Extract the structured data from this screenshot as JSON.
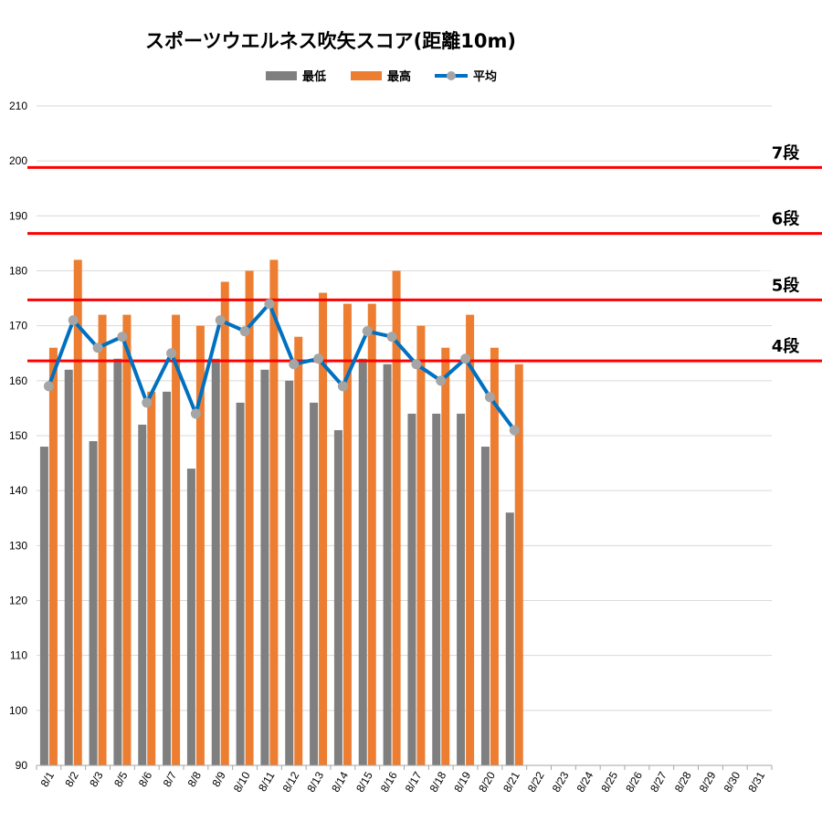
{
  "chart_data": {
    "type": "bar",
    "title": "スポーツウエルネス吹矢スコア(距離10m)",
    "xlabel": "",
    "ylabel": "",
    "ylim": [
      90,
      210
    ],
    "yticks": [
      90,
      100,
      110,
      120,
      130,
      140,
      150,
      160,
      170,
      180,
      190,
      200,
      210
    ],
    "grid": true,
    "legend_position": "top",
    "categories": [
      "8/1",
      "8/2",
      "8/3",
      "8/5",
      "8/6",
      "8/7",
      "8/8",
      "8/9",
      "8/10",
      "8/11",
      "8/12",
      "8/13",
      "8/14",
      "8/15",
      "8/16",
      "8/17",
      "8/18",
      "8/19",
      "8/20",
      "8/21",
      "8/22",
      "8/23",
      "8/24",
      "8/25",
      "8/26",
      "8/27",
      "8/28",
      "8/29",
      "8/30",
      "8/31"
    ],
    "series": [
      {
        "name": "最低",
        "type": "bar",
        "color": "#7f7f7f",
        "values": [
          148,
          162,
          149,
          164,
          152,
          158,
          144,
          164,
          156,
          162,
          160,
          156,
          151,
          164,
          163,
          154,
          154,
          154,
          148,
          136,
          null,
          null,
          null,
          null,
          null,
          null,
          null,
          null,
          null,
          null
        ]
      },
      {
        "name": "最高",
        "type": "bar",
        "color": "#ed7d31",
        "values": [
          166,
          182,
          172,
          172,
          158,
          172,
          170,
          178,
          180,
          182,
          168,
          176,
          174,
          174,
          180,
          170,
          166,
          172,
          166,
          163,
          null,
          null,
          null,
          null,
          null,
          null,
          null,
          null,
          null,
          null
        ]
      },
      {
        "name": "平均",
        "type": "line",
        "color": "#0070c0",
        "marker_color": "#a5a5a5",
        "values": [
          159,
          171,
          166,
          168,
          156,
          165,
          154,
          171,
          169,
          174,
          163,
          164,
          159,
          169,
          168,
          163,
          160,
          164,
          157,
          151,
          null,
          null,
          null,
          null,
          null,
          null,
          null,
          null,
          null,
          null
        ]
      }
    ],
    "reference_lines": [
      {
        "label": "7段",
        "value": 198.8,
        "color": "#ff0000"
      },
      {
        "label": "6段",
        "value": 186.8,
        "color": "#ff0000"
      },
      {
        "label": "5段",
        "value": 174.7,
        "color": "#ff0000"
      },
      {
        "label": "4段",
        "value": 163.6,
        "color": "#ff0000"
      }
    ]
  }
}
